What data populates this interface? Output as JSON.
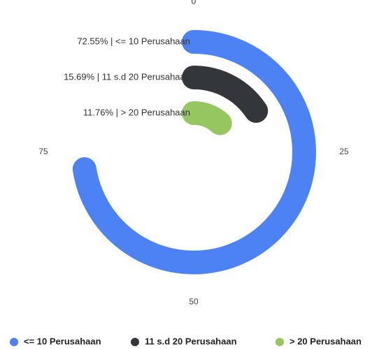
{
  "chart_data": {
    "type": "radialBar",
    "categories": [
      "<= 10 Perusahaan",
      "11 s.d 20 Perusahaan",
      "> 20 Perusahaan"
    ],
    "values": [
      72.55,
      15.69,
      11.76
    ],
    "value_labels": [
      "72.55% | <= 10 Perusahaan",
      "15.69% | 11 s.d 20 Perusahaan",
      "11.76% | > 20 Perusahaan"
    ],
    "colors": [
      "#4d82f5",
      "#33363b",
      "#95c65f"
    ],
    "xlim": [
      0,
      100
    ],
    "xticks": [
      0,
      25,
      50,
      75
    ],
    "legend": "bottom"
  }
}
